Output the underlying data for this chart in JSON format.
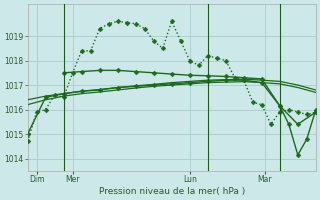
{
  "bg_color": "#cce8e8",
  "grid_color": "#aacccc",
  "line_color": "#1a6b1a",
  "title": "Pression niveau de la mer( hPa )",
  "ylim": [
    1013.5,
    1020.3
  ],
  "yticks": [
    1014,
    1015,
    1016,
    1017,
    1018,
    1019
  ],
  "series": [
    {
      "x": [
        0,
        3,
        6,
        9,
        12,
        15,
        18,
        21,
        24,
        27,
        30,
        33,
        36,
        39,
        42,
        45,
        48,
        51,
        54,
        57,
        60,
        63,
        66,
        69,
        72,
        75,
        78,
        81,
        84,
        87,
        90,
        93,
        96
      ],
      "y": [
        1014.7,
        1015.9,
        1016.0,
        1016.6,
        1016.5,
        1017.5,
        1018.4,
        1018.4,
        1019.3,
        1019.5,
        1019.6,
        1019.55,
        1019.5,
        1019.3,
        1018.8,
        1018.5,
        1019.6,
        1018.8,
        1018.0,
        1017.8,
        1018.2,
        1018.1,
        1018.0,
        1017.3,
        1017.2,
        1016.3,
        1016.2,
        1015.4,
        1015.9,
        1016.0,
        1015.9,
        1015.8,
        1015.9
      ],
      "linestyle": "dotted",
      "marker": "D",
      "markersize": 2.5,
      "linewidth": 1.0
    },
    {
      "x": [
        0,
        6,
        12,
        18,
        24,
        30,
        36,
        42,
        48,
        54,
        60,
        66,
        72,
        78,
        84,
        90,
        96
      ],
      "y": [
        1015.0,
        1016.5,
        1016.65,
        1016.75,
        1016.8,
        1016.9,
        1016.95,
        1017.0,
        1017.05,
        1017.1,
        1017.15,
        1017.2,
        1017.2,
        1017.1,
        1016.15,
        1015.4,
        1015.9
      ],
      "linestyle": "solid",
      "marker": "D",
      "markersize": 2.5,
      "linewidth": 1.0
    },
    {
      "x": [
        0,
        6,
        12,
        18,
        24,
        30,
        36,
        42,
        48,
        54,
        60,
        66,
        72,
        78,
        84,
        90,
        96
      ],
      "y": [
        1016.4,
        1016.55,
        1016.65,
        1016.75,
        1016.82,
        1016.9,
        1016.97,
        1017.03,
        1017.1,
        1017.15,
        1017.2,
        1017.22,
        1017.24,
        1017.2,
        1017.15,
        1017.0,
        1016.8
      ],
      "linestyle": "solid",
      "marker": null,
      "markersize": 0,
      "linewidth": 0.9
    },
    {
      "x": [
        0,
        6,
        12,
        18,
        24,
        30,
        36,
        42,
        48,
        54,
        60,
        66,
        72,
        78,
        84,
        90,
        96
      ],
      "y": [
        1016.2,
        1016.4,
        1016.55,
        1016.65,
        1016.72,
        1016.8,
        1016.88,
        1016.95,
        1017.0,
        1017.05,
        1017.1,
        1017.12,
        1017.14,
        1017.1,
        1017.05,
        1016.9,
        1016.7
      ],
      "linestyle": "solid",
      "marker": null,
      "markersize": 0,
      "linewidth": 0.9
    },
    {
      "x": [
        12,
        18,
        24,
        30,
        36,
        42,
        48,
        54,
        60,
        66,
        72,
        78,
        84,
        87,
        90,
        93,
        96
      ],
      "y": [
        1017.5,
        1017.55,
        1017.6,
        1017.6,
        1017.55,
        1017.5,
        1017.45,
        1017.4,
        1017.38,
        1017.35,
        1017.3,
        1017.25,
        1016.15,
        1015.4,
        1014.15,
        1014.8,
        1016.0
      ],
      "linestyle": "solid",
      "marker": "D",
      "markersize": 2.5,
      "linewidth": 1.0
    }
  ],
  "vlines": [
    12,
    60,
    84
  ],
  "day_labels": [
    {
      "x": 3,
      "label": "Dim"
    },
    {
      "x": 15,
      "label": "Mer"
    },
    {
      "x": 55,
      "label": "Lun"
    },
    {
      "x": 79,
      "label": "Mar"
    }
  ],
  "vline_color": "#1a5c1a"
}
